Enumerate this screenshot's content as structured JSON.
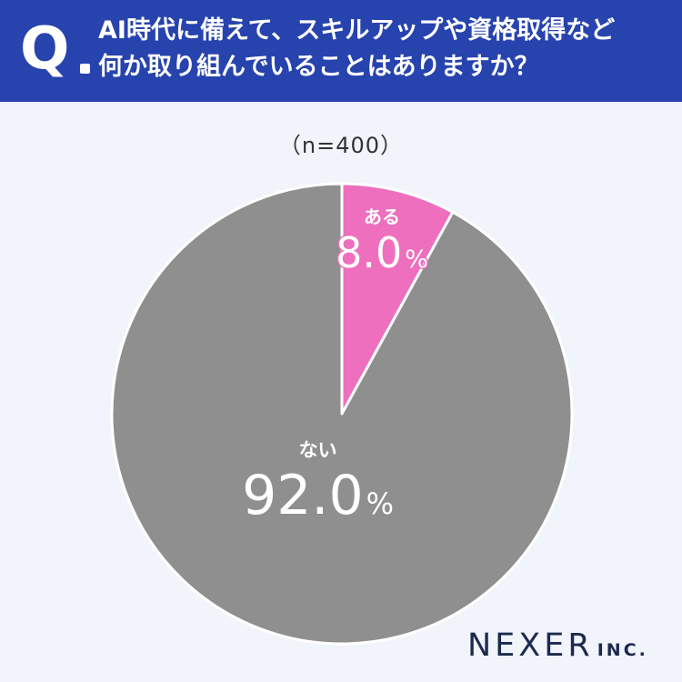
{
  "header": {
    "q_letter": "Q",
    "question_line1": "AI時代に備えて、スキルアップや資格取得など",
    "question_line2": "何か取り組んでいることはありますか？"
  },
  "sample_label": "（n=400）",
  "chart_data": {
    "type": "pie",
    "start": "top",
    "direction": "clockwise",
    "slices": [
      {
        "label": "ある",
        "value": 8.0,
        "display": "8.0",
        "unit": "%",
        "color": "#ee6fbd"
      },
      {
        "label": "ない",
        "value": 92.0,
        "display": "92.0",
        "unit": "%",
        "color": "#8f8f8f"
      }
    ]
  },
  "logo": {
    "main": "NEXER",
    "sub": "INC."
  },
  "colors": {
    "header_bg": "#2743ad",
    "background": "#f2f4fb",
    "slice_stroke": "#ffffff"
  }
}
